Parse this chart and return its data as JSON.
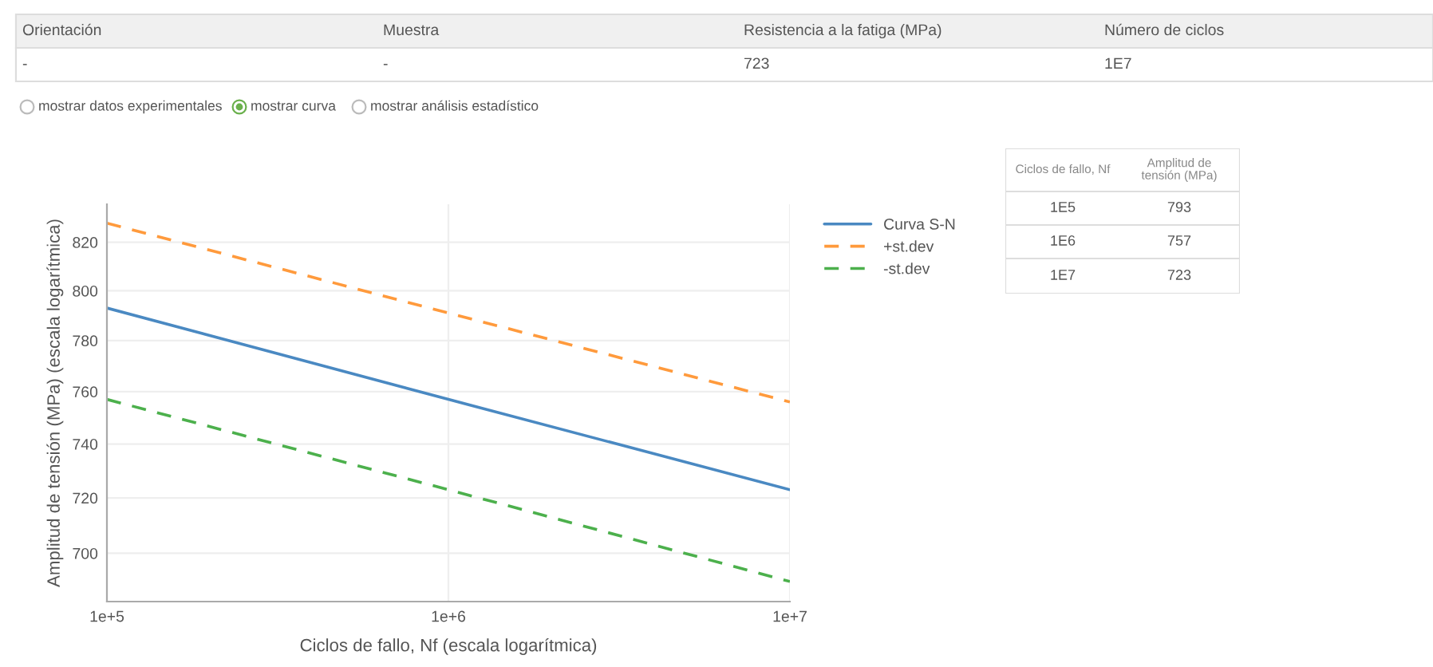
{
  "chart_data": [
    {
      "type": "line",
      "xlabel": "Ciclos de fallo, Nf (escala logarítmica)",
      "ylabel": "Amplitud de tensión (MPa) (escala logarítmica)",
      "log": "xy",
      "x": [
        100000,
        1000000,
        10000000
      ],
      "series": [
        {
          "name": "Curva S-N",
          "color": "#4a89c2",
          "values": [
            793,
            757,
            723
          ],
          "line_style": "solid"
        },
        {
          "name": "+st.dev",
          "color": "#ff9a3c",
          "values": [
            828,
            791,
            756
          ],
          "line_style": "dashed"
        },
        {
          "name": "-st.dev",
          "color": "#4cb04c",
          "values": [
            757,
            723,
            690
          ],
          "line_style": "dashed"
        }
      ],
      "xlim": [
        100000,
        10000000
      ],
      "xticks": [
        {
          "value": 100000,
          "label": "1e+5"
        },
        {
          "value": 1000000,
          "label": "1e+6"
        },
        {
          "value": 10000000,
          "label": "1e+7"
        }
      ],
      "ylim": [
        683,
        836
      ],
      "yticks": [
        700,
        720,
        740,
        760,
        780,
        800,
        820
      ],
      "grid": true,
      "legend": "top right",
      "marker": "none"
    },
    {
      "type": "other",
      "annotations": [
        "Orientación",
        "Muestra",
        "Resistencia a la fatiga (MPa)",
        "Número de ciclos",
        "-",
        "-",
        "723",
        "1E7",
        "mostrar datos experimentales",
        "mostrar curva",
        "mostrar análisis estadístico"
      ]
    },
    {
      "type": "other",
      "annotations": [
        "Ciclos de fallo, Nf",
        "Amplitud de\ntensión (MPa)",
        "1E5",
        "793",
        "1E6",
        "757",
        "1E7",
        "723"
      ]
    }
  ]
}
